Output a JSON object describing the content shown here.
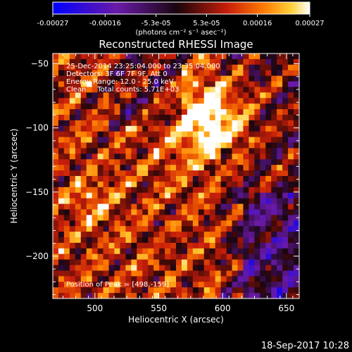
{
  "chart_data": {
    "type": "heatmap",
    "title": "Reconstructed RHESSI Image",
    "xlabel": "Heliocentric X (arcsec)",
    "ylabel": "Heliocentric Y (arcsec)",
    "xlim": [
      467,
      660
    ],
    "ylim": [
      -233,
      -42
    ],
    "x_ticks": [
      "500",
      "550",
      "600",
      "650"
    ],
    "x_tick_values": [
      500,
      550,
      600,
      650
    ],
    "y_ticks": [
      "-50",
      "-100",
      "-150",
      "-200"
    ],
    "y_tick_values": [
      -50,
      -100,
      -150,
      -200
    ],
    "colorbar": {
      "min": -0.00027,
      "max": 0.00027,
      "tick_labels": [
        "-0.00027",
        "-0.00016",
        "-5.3e-05",
        "5.3e-05",
        "0.00016",
        "0.00027"
      ],
      "tick_values": [
        -0.00027,
        -0.00016,
        -5.3e-05,
        5.3e-05,
        0.00016,
        0.00027
      ],
      "units_label": "(photons cm⁻² s⁻¹ asec⁻²)"
    },
    "annotations": {
      "time_range": "25-Dec-2014 23:25:04.000 to 23:35:04.000",
      "detectors": "Detectors: 3F 6F 7F 9F, Att 0",
      "energy": "Energy Range: 12.0 - 25.0 keV",
      "clean": "Clean     Total counts: 5.71E+03",
      "peak": "Position of Peak = [498,-159]"
    },
    "grid": false,
    "color_scale": "blue-purple-red-yellow-white",
    "peak_position": [
      498,
      -159
    ],
    "bright_region_center": [
      592,
      -95
    ]
  },
  "footer": {
    "timestamp": "18-Sep-2017 10:28"
  }
}
